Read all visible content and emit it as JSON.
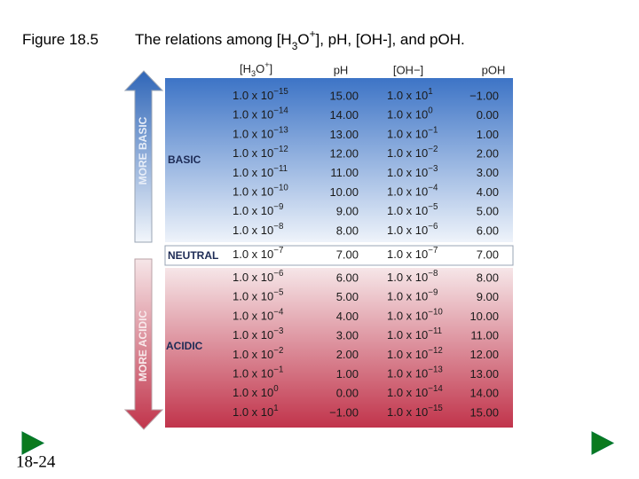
{
  "title": {
    "figure": "Figure 18.5",
    "caption": [
      "The relations among [H",
      "3",
      "O",
      "+",
      "], pH, [OH",
      "-",
      "], and pOH."
    ]
  },
  "table": {
    "headers": {
      "h3o": [
        "[H",
        "3",
        "O",
        "+",
        "]"
      ],
      "ph": "pH",
      "oh": "[OH−]",
      "poh": "pOH"
    },
    "rows": [
      {
        "h3o": {
          "base": "1.0 x 10",
          "exp": "−15"
        },
        "ph": "15.00",
        "oh": {
          "base": "1.0 x 10",
          "exp": "1"
        },
        "poh": "−1.00"
      },
      {
        "h3o": {
          "base": "1.0 x 10",
          "exp": "−14"
        },
        "ph": "14.00",
        "oh": {
          "base": "1.0 x 10",
          "exp": "0"
        },
        "poh": "0.00"
      },
      {
        "h3o": {
          "base": "1.0 x 10",
          "exp": "−13"
        },
        "ph": "13.00",
        "oh": {
          "base": "1.0 x 10",
          "exp": "−1"
        },
        "poh": "1.00"
      },
      {
        "h3o": {
          "base": "1.0 x 10",
          "exp": "−12"
        },
        "ph": "12.00",
        "oh": {
          "base": "1.0 x 10",
          "exp": "−2"
        },
        "poh": "2.00"
      },
      {
        "h3o": {
          "base": "1.0 x 10",
          "exp": "−11"
        },
        "ph": "11.00",
        "oh": {
          "base": "1.0 x 10",
          "exp": "−3"
        },
        "poh": "3.00"
      },
      {
        "h3o": {
          "base": "1.0 x 10",
          "exp": "−10"
        },
        "ph": "10.00",
        "oh": {
          "base": "1.0 x 10",
          "exp": "−4"
        },
        "poh": "4.00"
      },
      {
        "h3o": {
          "base": "1.0 x 10",
          "exp": "−9"
        },
        "ph": "9.00",
        "oh": {
          "base": "1.0 x 10",
          "exp": "−5"
        },
        "poh": "5.00"
      },
      {
        "h3o": {
          "base": "1.0 x 10",
          "exp": "−8"
        },
        "ph": "8.00",
        "oh": {
          "base": "1.0 x 10",
          "exp": "−6"
        },
        "poh": "6.00"
      },
      {
        "h3o": {
          "base": "1.0 x 10",
          "exp": "−7"
        },
        "ph": "7.00",
        "oh": {
          "base": "1.0 x 10",
          "exp": "−7"
        },
        "poh": "7.00"
      },
      {
        "h3o": {
          "base": "1.0 x 10",
          "exp": "−6"
        },
        "ph": "6.00",
        "oh": {
          "base": "1.0 x 10",
          "exp": "−8"
        },
        "poh": "8.00"
      },
      {
        "h3o": {
          "base": "1.0 x 10",
          "exp": "−5"
        },
        "ph": "5.00",
        "oh": {
          "base": "1.0 x 10",
          "exp": "−9"
        },
        "poh": "9.00"
      },
      {
        "h3o": {
          "base": "1.0 x 10",
          "exp": "−4"
        },
        "ph": "4.00",
        "oh": {
          "base": "1.0 x 10",
          "exp": "−10"
        },
        "poh": "10.00"
      },
      {
        "h3o": {
          "base": "1.0 x 10",
          "exp": "−3"
        },
        "ph": "3.00",
        "oh": {
          "base": "1.0 x 10",
          "exp": "−11"
        },
        "poh": "11.00"
      },
      {
        "h3o": {
          "base": "1.0 x 10",
          "exp": "−2"
        },
        "ph": "2.00",
        "oh": {
          "base": "1.0 x 10",
          "exp": "−12"
        },
        "poh": "12.00"
      },
      {
        "h3o": {
          "base": "1.0 x 10",
          "exp": "−1"
        },
        "ph": "1.00",
        "oh": {
          "base": "1.0 x 10",
          "exp": "−13"
        },
        "poh": "13.00"
      },
      {
        "h3o": {
          "base": "1.0 x 10",
          "exp": "0"
        },
        "ph": "0.00",
        "oh": {
          "base": "1.0 x 10",
          "exp": "−14"
        },
        "poh": "14.00"
      },
      {
        "h3o": {
          "base": "1.0 x 10",
          "exp": "1"
        },
        "ph": "−1.00",
        "oh": {
          "base": "1.0 x 10",
          "exp": "−15"
        },
        "poh": "15.00"
      }
    ],
    "sections": {
      "basic": "BASIC",
      "neutral": "NEUTRAL",
      "acidic": "ACIDIC"
    }
  },
  "arrows": {
    "up": "MORE BASIC",
    "down": "MORE ACIDIC"
  },
  "slide_number": "18-24"
}
